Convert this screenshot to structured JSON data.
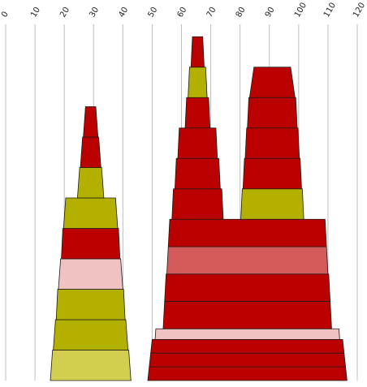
{
  "chart_data": {
    "type": "pyramid-stack",
    "title": "",
    "xlabel": "",
    "ylabel": "",
    "xlim": [
      0,
      120
    ],
    "x_ticks": [
      "0",
      "10",
      "20",
      "30",
      "40",
      "50",
      "60",
      "70",
      "80",
      "90",
      "100",
      "110",
      "120"
    ],
    "grid": "vertical",
    "colors": {
      "red": "#bb0000",
      "olive": "#b3b000",
      "light_olive": "#d3cd50",
      "salmon": "#d45b5b",
      "pink": "#f2c1c1"
    },
    "shapes": [
      {
        "name": "left-pyramid",
        "center_x": 29,
        "layers": [
          {
            "base_width": 27.5,
            "top_width": 26.0,
            "level": 0,
            "height": 1,
            "color": "light_olive"
          },
          {
            "base_width": 25.5,
            "top_width": 24.0,
            "level": 1,
            "height": 1,
            "color": "olive"
          },
          {
            "base_width": 23.5,
            "top_width": 22.5,
            "level": 2,
            "height": 1,
            "color": "olive"
          },
          {
            "base_width": 22.0,
            "top_width": 20.5,
            "level": 3,
            "height": 1,
            "color": "pink"
          },
          {
            "base_width": 20.0,
            "top_width": 19.0,
            "level": 4,
            "height": 1,
            "color": "red"
          },
          {
            "base_width": 18.5,
            "top_width": 17.0,
            "level": 5,
            "height": 1,
            "color": "olive"
          },
          {
            "base_width": 9.0,
            "top_width": 7.5,
            "level": 6,
            "height": 1,
            "color": "olive"
          },
          {
            "base_width": 7.0,
            "top_width": 5.5,
            "level": 7,
            "height": 1,
            "color": "red"
          },
          {
            "base_width": 5.0,
            "top_width": 3.5,
            "level": 8,
            "height": 1,
            "color": "red"
          }
        ]
      },
      {
        "name": "right-base",
        "center_x": 82.5,
        "layers": [
          {
            "base_width": 68.0,
            "top_width": 67.0,
            "level": 0,
            "height": 0.45,
            "color": "red"
          },
          {
            "base_width": 67.0,
            "top_width": 66.0,
            "level": 0.45,
            "height": 0.45,
            "color": "red"
          },
          {
            "base_width": 66.0,
            "top_width": 65.0,
            "level": 0.9,
            "height": 0.45,
            "color": "red"
          },
          {
            "base_width": 63.0,
            "top_width": 62.5,
            "level": 1.35,
            "height": 0.35,
            "color": "pink"
          },
          {
            "base_width": 57.5,
            "top_width": 56.5,
            "level": 1.7,
            "height": 0.9,
            "color": "red"
          },
          {
            "base_width": 56.5,
            "top_width": 55.5,
            "level": 2.6,
            "height": 0.9,
            "color": "red"
          },
          {
            "base_width": 55.0,
            "top_width": 54.0,
            "level": 3.5,
            "height": 0.9,
            "color": "salmon"
          },
          {
            "base_width": 54.0,
            "top_width": 53.0,
            "level": 4.4,
            "height": 0.9,
            "color": "red"
          }
        ]
      },
      {
        "name": "right-peak-left",
        "center_x": 65.5,
        "layers": [
          {
            "base_width": 17.5,
            "top_width": 16.5,
            "level": 5.3,
            "height": 1.0,
            "color": "red"
          },
          {
            "base_width": 15.5,
            "top_width": 14.5,
            "level": 6.3,
            "height": 1.0,
            "color": "red"
          },
          {
            "base_width": 13.5,
            "top_width": 12.5,
            "level": 7.3,
            "height": 1.0,
            "color": "red"
          },
          {
            "base_width": 8.5,
            "top_width": 7.5,
            "level": 8.3,
            "height": 1.0,
            "color": "red"
          },
          {
            "base_width": 6.5,
            "top_width": 5.5,
            "level": 9.3,
            "height": 1.0,
            "color": "olive"
          },
          {
            "base_width": 4.5,
            "top_width": 3.5,
            "level": 10.3,
            "height": 1.0,
            "color": "red"
          }
        ]
      },
      {
        "name": "right-peak-right",
        "center_x": 91,
        "layers": [
          {
            "base_width": 21.5,
            "top_width": 20.5,
            "level": 5.3,
            "height": 1.0,
            "color": "olive"
          },
          {
            "base_width": 20.0,
            "top_width": 19.0,
            "level": 6.3,
            "height": 1.0,
            "color": "red"
          },
          {
            "base_width": 18.5,
            "top_width": 17.5,
            "level": 7.3,
            "height": 1.0,
            "color": "red"
          },
          {
            "base_width": 17.0,
            "top_width": 16.0,
            "level": 8.3,
            "height": 1.0,
            "color": "red"
          },
          {
            "base_width": 15.5,
            "top_width": 12.5,
            "level": 9.3,
            "height": 1.0,
            "color": "red"
          }
        ]
      }
    ]
  }
}
